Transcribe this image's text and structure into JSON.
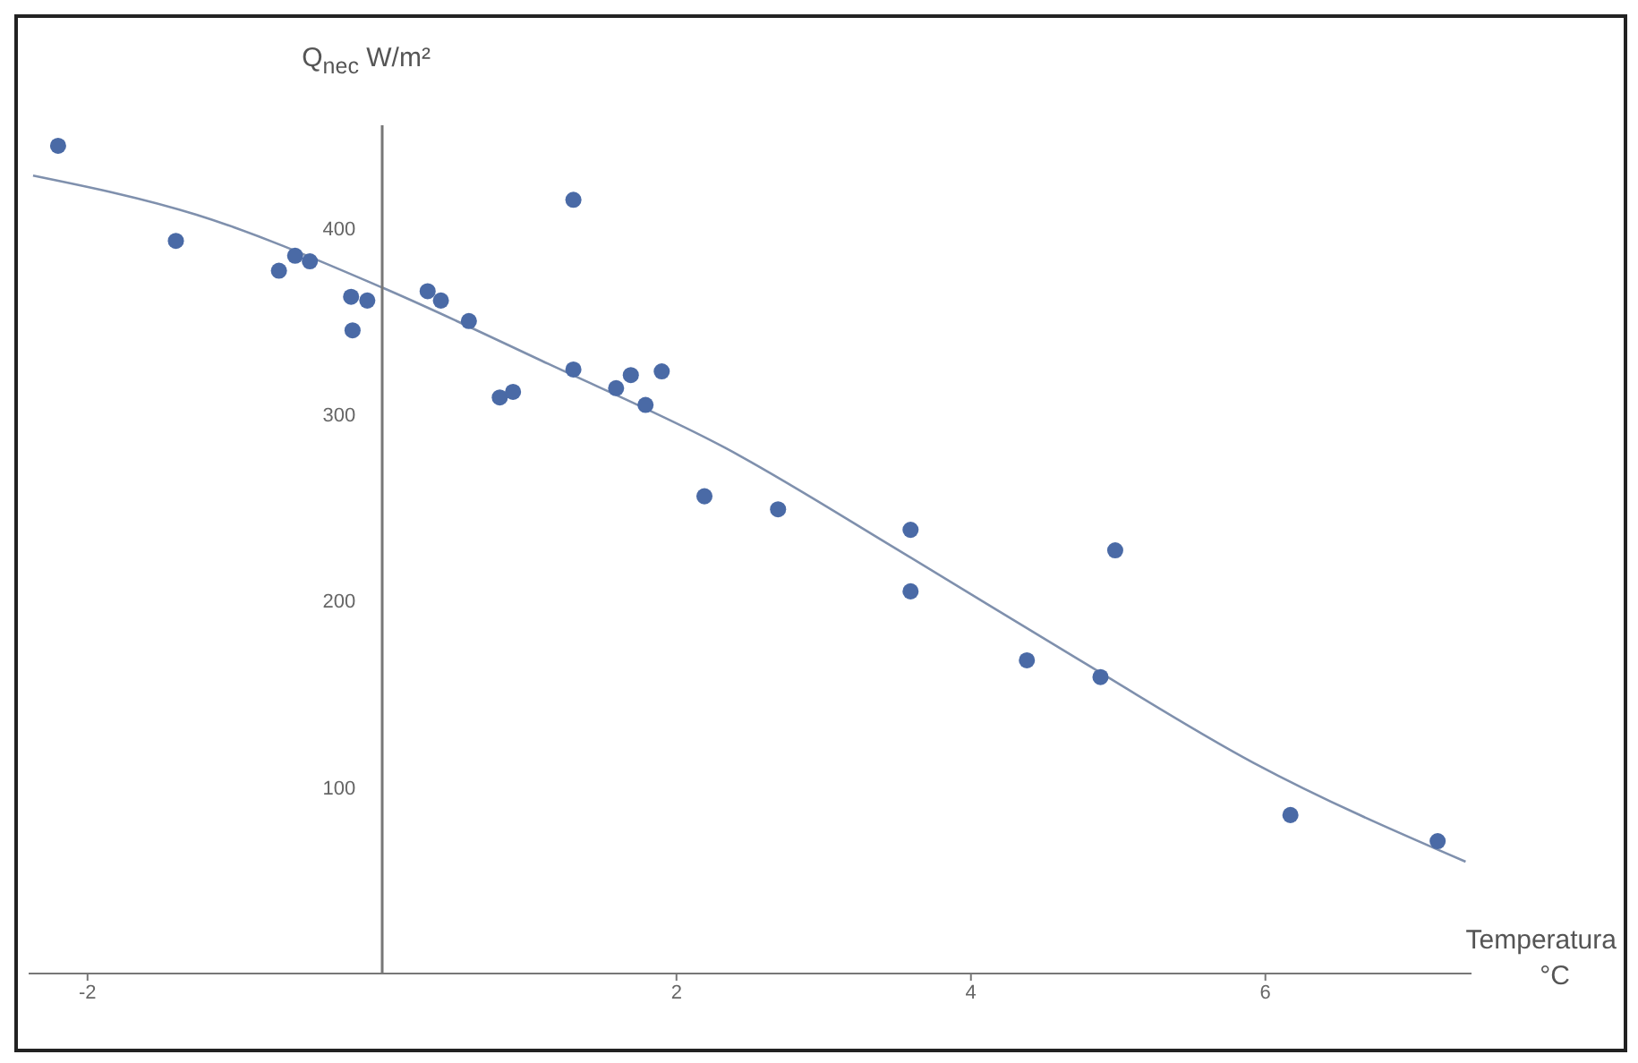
{
  "chart_data": {
    "type": "scatter",
    "xlabel": "Temperatura °C",
    "ylabel": "Q$_{nec}$ W/m²",
    "xlim": [
      -2.4,
      7.4
    ],
    "ylim": [
      0,
      455
    ],
    "xticks": [
      -2,
      2,
      4,
      6
    ],
    "yticks": [
      100,
      200,
      300,
      400
    ],
    "grid": false,
    "marker": "circle",
    "series": [
      {
        "color": "#4a6aa6",
        "x": [
          -2.2,
          -1.4,
          -0.7,
          -0.59,
          -0.49,
          -0.21,
          -0.2,
          -0.1,
          0.31,
          0.4,
          0.59,
          0.8,
          0.89,
          1.3,
          1.3,
          1.59,
          1.69,
          1.79,
          1.9,
          2.19,
          2.69,
          3.59,
          3.59,
          4.38,
          4.88,
          4.98,
          6.17,
          7.17
        ],
        "values": [
          444,
          393,
          377,
          385,
          382,
          363,
          345,
          361,
          366,
          361,
          350,
          309,
          312,
          415,
          324,
          314,
          321,
          305,
          323,
          256,
          249,
          238,
          205,
          168,
          159,
          227,
          85,
          71
        ]
      },
      {
        "type": "line",
        "color": "#7f90ad",
        "line_style": "solid",
        "marker": "none",
        "x": [
          -2.37,
          -1.26,
          0,
          1.13,
          2.33,
          3.53,
          4.72,
          5.92,
          7.36
        ],
        "values": [
          428,
          407,
          368,
          327,
          282,
          226,
          169,
          113,
          60
        ]
      }
    ]
  }
}
